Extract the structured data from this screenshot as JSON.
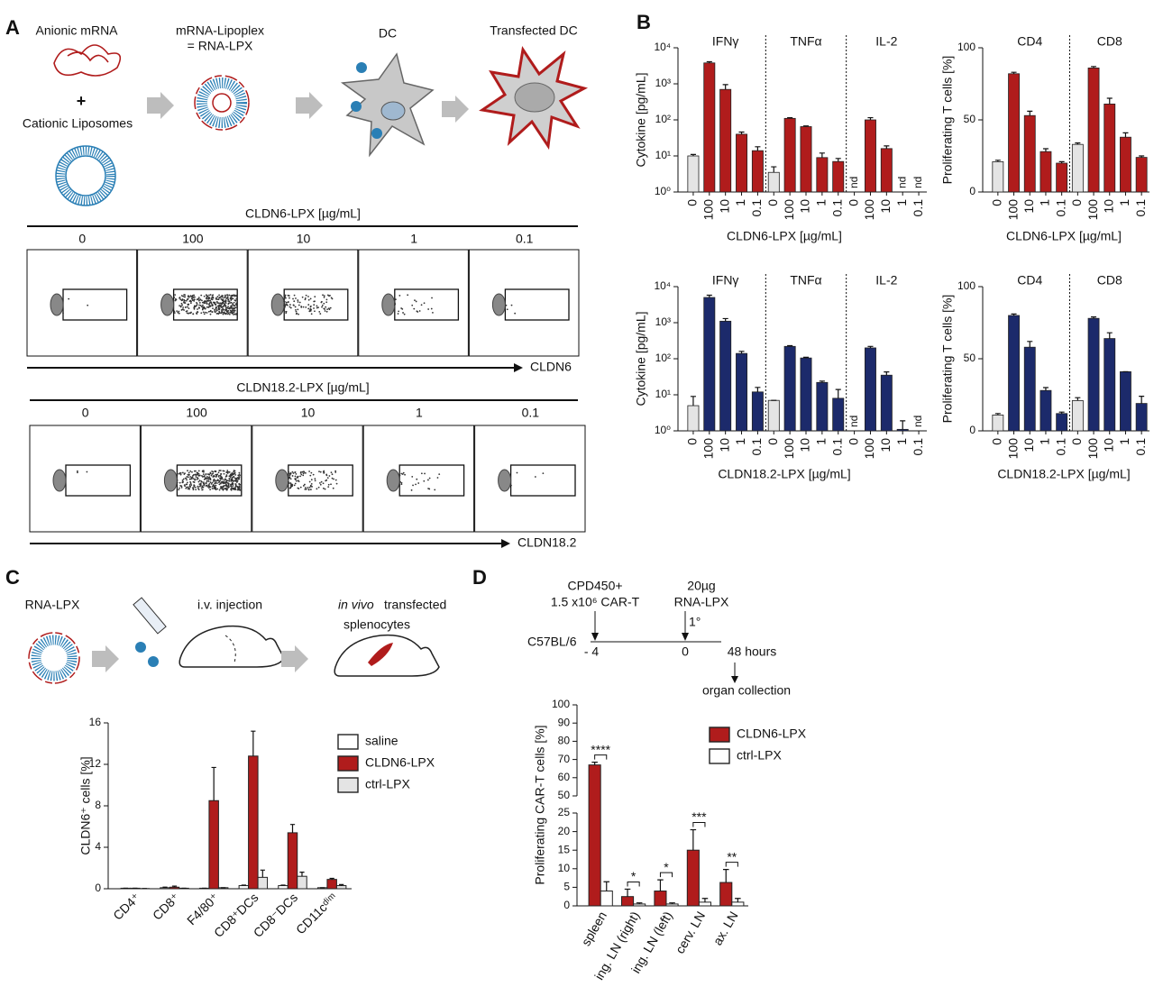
{
  "panel_labels": [
    "A",
    "B",
    "C",
    "D"
  ],
  "schematic_A": {
    "mrna": "Anionic mRNA",
    "plus": "+",
    "liposomes": "Cationic Liposomes",
    "lipoplex": "mRNA-Lipoplex",
    "lipoplex_eq": "= RNA-LPX",
    "dc": "DC",
    "transfected_dc": "Transfected DC"
  },
  "flow_cytometry": [
    {
      "title": "CLDN6-LPX [µg/mL]",
      "doses": [
        "0",
        "100",
        "10",
        "1",
        "0.1"
      ],
      "marker": "CLDN6"
    },
    {
      "title": "CLDN18.2-LPX [µg/mL]",
      "doses": [
        "0",
        "100",
        "10",
        "1",
        "0.1"
      ],
      "marker": "CLDN18.2"
    }
  ],
  "schematic_C": {
    "lpx": "RNA-LPX",
    "injection": "i.v. injection",
    "in_vivo": "in vivo",
    "transfected": "transfected",
    "splenocytes": "splenocytes"
  },
  "timeline_D": {
    "cells": "CPD450+",
    "dose_cells": "1.5 x10⁶ CAR-T",
    "dose_lpx": "20µg",
    "lpx": "RNA-LPX",
    "prime": "1°",
    "strain": "C57BL/6",
    "t_start": "- 4",
    "t_zero": "0",
    "t_end": "48 hours",
    "collection": "organ collection"
  },
  "chart_data": [
    {
      "type": "bar",
      "ylabel": "Cytokine [pg/mL]",
      "xlabel": "CLDN6-LPX [µg/mL]",
      "log_scale": true,
      "ylim": [
        1,
        10000
      ],
      "yticks": [
        {
          "value": 1,
          "label": "10⁰"
        },
        {
          "value": 10,
          "label": "10¹"
        },
        {
          "value": 100,
          "label": "10²"
        },
        {
          "value": 1000,
          "label": "10³"
        },
        {
          "value": 10000,
          "label": "10⁴"
        }
      ],
      "groups": [
        "IFNγ",
        "TNFα",
        "IL-2"
      ],
      "categories": [
        "0",
        "100",
        "10",
        "1",
        "0.1",
        "0",
        "100",
        "10",
        "1",
        "0.1",
        "0",
        "100",
        "10",
        "1",
        "0.1"
      ],
      "values": [
        10,
        3800,
        700,
        40,
        14,
        3.5,
        110,
        65,
        9,
        7,
        null,
        100,
        16,
        null,
        null
      ],
      "errors": [
        1,
        300,
        250,
        6,
        4,
        1.5,
        5,
        3,
        3,
        1.5,
        null,
        15,
        3,
        null,
        null
      ],
      "value_labels": [
        null,
        null,
        null,
        null,
        null,
        null,
        null,
        null,
        null,
        null,
        "nd",
        null,
        null,
        "nd",
        "nd"
      ],
      "color": "#b01c1c",
      "control_color": "#e4e4e4"
    },
    {
      "type": "bar",
      "ylabel": "Proliferating T cells [%]",
      "xlabel": "CLDN6-LPX [µg/mL]",
      "ylim": [
        0,
        100
      ],
      "yticks": [
        0,
        50,
        100
      ],
      "groups": [
        "CD4",
        "CD8"
      ],
      "categories": [
        "0",
        "100",
        "10",
        "1",
        "0.1",
        "0",
        "100",
        "10",
        "1",
        "0.1"
      ],
      "values": [
        21,
        82,
        53,
        28,
        20,
        33,
        86,
        61,
        38,
        24
      ],
      "errors": [
        1,
        1,
        3,
        2,
        1,
        1,
        1,
        4,
        3,
        1
      ],
      "color": "#b01c1c",
      "control_color": "#e4e4e4"
    },
    {
      "type": "bar",
      "ylabel": "Cytokine [pg/mL]",
      "xlabel": "CLDN18.2-LPX [µg/mL]",
      "log_scale": true,
      "ylim": [
        1,
        10000
      ],
      "yticks": [
        {
          "value": 1,
          "label": "10⁰"
        },
        {
          "value": 10,
          "label": "10¹"
        },
        {
          "value": 100,
          "label": "10²"
        },
        {
          "value": 1000,
          "label": "10³"
        },
        {
          "value": 10000,
          "label": "10⁴"
        }
      ],
      "groups": [
        "IFNγ",
        "TNFα",
        "IL-2"
      ],
      "categories": [
        "0",
        "100",
        "10",
        "1",
        "0.1",
        "0",
        "100",
        "10",
        "1",
        "0.1",
        "0",
        "100",
        "10",
        "1",
        "0.1"
      ],
      "values": [
        5,
        5000,
        1100,
        140,
        12,
        7,
        220,
        105,
        22,
        8,
        null,
        200,
        35,
        1.1,
        null
      ],
      "errors": [
        4,
        800,
        200,
        20,
        4,
        0,
        10,
        5,
        2,
        6,
        null,
        20,
        8,
        0.8,
        null
      ],
      "value_labels": [
        null,
        null,
        null,
        null,
        null,
        null,
        null,
        null,
        null,
        null,
        "nd",
        null,
        null,
        null,
        "nd"
      ],
      "color": "#1c2a6b",
      "control_color": "#e4e4e4"
    },
    {
      "type": "bar",
      "ylabel": "Proliferating T cells [%]",
      "xlabel": "CLDN18.2-LPX [µg/mL]",
      "ylim": [
        0,
        100
      ],
      "yticks": [
        0,
        50,
        100
      ],
      "groups": [
        "CD4",
        "CD8"
      ],
      "categories": [
        "0",
        "100",
        "10",
        "1",
        "0.1",
        "0",
        "100",
        "10",
        "1",
        "0.1"
      ],
      "values": [
        11,
        80,
        58,
        28,
        12,
        21,
        78,
        64,
        41,
        19
      ],
      "errors": [
        1,
        1,
        4,
        2,
        1,
        2,
        1,
        4,
        0,
        5
      ],
      "color": "#1c2a6b",
      "control_color": "#e4e4e4"
    },
    {
      "type": "grouped_bar",
      "ylabel": "CLDN6⁺ cells [%]",
      "ylim": [
        0,
        16
      ],
      "yticks": [
        0,
        4,
        8,
        12,
        16
      ],
      "legend": "right",
      "categories": [
        "CD4⁺",
        "CD8⁺",
        "F4/80⁺",
        "CD8⁺DCs",
        "CD8⁻DCs",
        "CD11cᵈⁱᵐ"
      ],
      "series": [
        {
          "name": "saline",
          "color": "#ffffff",
          "values": [
            0.05,
            0.1,
            0.05,
            0.3,
            0.3,
            0.1
          ],
          "errors": [
            0,
            0.05,
            0,
            0.05,
            0.05,
            0
          ]
        },
        {
          "name": "CLDN6-LPX",
          "color": "#b01c1c",
          "values": [
            0.05,
            0.15,
            8.5,
            12.8,
            5.4,
            0.9
          ],
          "errors": [
            0,
            0.1,
            3.2,
            2.4,
            0.8,
            0.1
          ]
        },
        {
          "name": "ctrl-LPX",
          "color": "#e4e4e4",
          "values": [
            0.02,
            0.05,
            0.1,
            1.1,
            1.2,
            0.3
          ],
          "errors": [
            0,
            0,
            0,
            0.7,
            0.4,
            0.1
          ]
        }
      ]
    },
    {
      "type": "grouped_bar",
      "ylabel": "Proliferating CAR-T cells [%]",
      "ylim": [
        0,
        100
      ],
      "axis_break": [
        25,
        50
      ],
      "yticks": [
        0,
        5,
        10,
        15,
        20,
        25,
        50,
        60,
        70,
        80,
        90,
        100
      ],
      "legend": "right",
      "categories": [
        "spleen",
        "ing. LN (right)",
        "ing. LN (left)",
        "cerv. LN",
        "ax. LN"
      ],
      "series": [
        {
          "name": "CLDN6-LPX",
          "color": "#b01c1c",
          "values": [
            67,
            2.5,
            4,
            15,
            6.3
          ],
          "errors": [
            1.5,
            2,
            3,
            5.5,
            3.5
          ]
        },
        {
          "name": "ctrl-LPX",
          "color": "#ffffff",
          "values": [
            4,
            0.5,
            0.5,
            1,
            1
          ],
          "errors": [
            2.5,
            0.3,
            0.3,
            1,
            1
          ]
        }
      ],
      "annotations": [
        "****",
        "*",
        "*",
        "***",
        "**"
      ]
    }
  ]
}
